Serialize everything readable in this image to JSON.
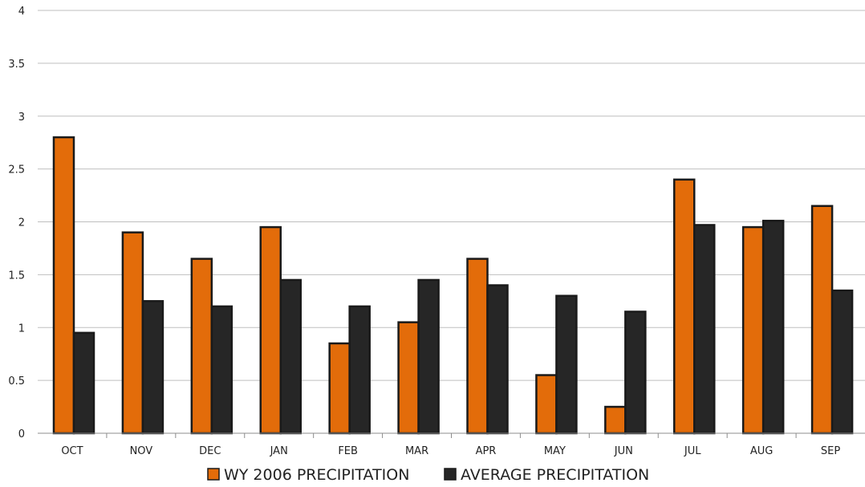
{
  "chart_data": {
    "type": "bar",
    "title": "",
    "xlabel": "",
    "ylabel": "",
    "ylim": [
      0,
      4
    ],
    "yticks": [
      "0",
      "0.5",
      "1",
      "1.5",
      "2",
      "2.5",
      "3",
      "3.5",
      "4"
    ],
    "grid": true,
    "legend_position": "bottom",
    "categories": [
      "OCT",
      "NOV",
      "DEC",
      "JAN",
      "FEB",
      "MAR",
      "APR",
      "MAY",
      "JUN",
      "JUL",
      "AUG",
      "SEP"
    ],
    "series": [
      {
        "name": "WY 2006 PRECIPITATION",
        "color": "#E36C0A",
        "values": [
          2.8,
          1.9,
          1.65,
          1.95,
          0.85,
          1.05,
          1.65,
          0.55,
          0.25,
          2.4,
          1.95,
          2.15
        ]
      },
      {
        "name": "AVERAGE PRECIPITATION",
        "color": "#262626",
        "values": [
          0.95,
          1.25,
          1.2,
          1.45,
          1.2,
          1.45,
          1.4,
          1.3,
          1.15,
          1.97,
          2.01,
          1.35
        ]
      }
    ],
    "bar_outline_color": "#1a1a1a",
    "gridline_color": "#bfbfbf"
  }
}
